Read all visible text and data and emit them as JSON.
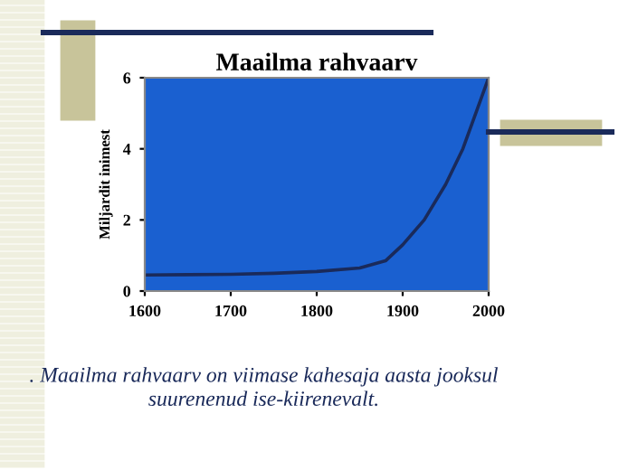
{
  "chart_data": {
    "type": "line",
    "title": "Maailma rahvaarv",
    "ylabel": "Miljardit inimest",
    "x": [
      1600,
      1650,
      1700,
      1750,
      1800,
      1850,
      1880,
      1900,
      1925,
      1950,
      1970,
      1985,
      2000
    ],
    "series": [
      {
        "color": "#1a2a5a",
        "values": [
          0.45,
          0.46,
          0.47,
          0.5,
          0.55,
          0.65,
          0.85,
          1.3,
          2.0,
          3.0,
          4.0,
          5.0,
          6.0
        ]
      }
    ],
    "xlim": [
      1600,
      2000
    ],
    "xticks": [
      1600,
      1700,
      1800,
      1900,
      2000
    ],
    "ylim": [
      0,
      6
    ],
    "yticks": [
      0,
      2,
      4,
      6
    ],
    "grid": false,
    "marker": "none",
    "line_style": "solid",
    "annotations": [
      ". Maailma rahvaarv on viimase kahesaja aasta jooksul\nsuurenenud ise-kiirenevalt."
    ]
  }
}
